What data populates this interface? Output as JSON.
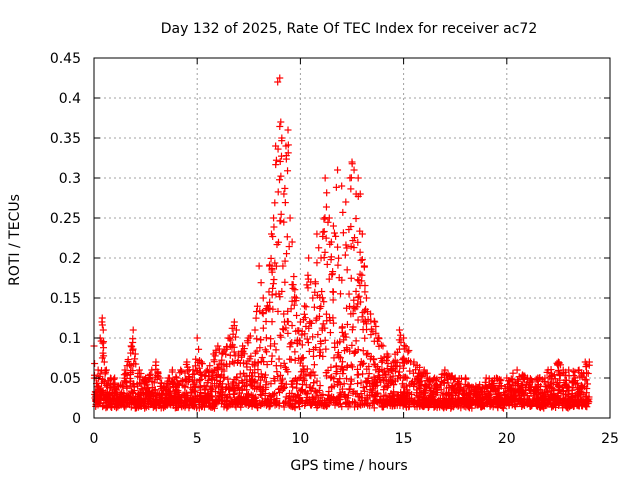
{
  "chart_data": {
    "type": "scatter",
    "title": "Day 132 of 2025, Rate Of TEC Index for receiver ac72",
    "xlabel": "GPS time / hours",
    "ylabel": "ROTI / TECUs",
    "xlim": [
      0,
      25
    ],
    "ylim": [
      0,
      0.45
    ],
    "x_ticks": [
      "0",
      "5",
      "10",
      "15",
      "20",
      "25"
    ],
    "y_ticks": [
      "0",
      "0.05",
      "0.1",
      "0.15",
      "0.2",
      "0.25",
      "0.3",
      "0.35",
      "0.4",
      "0.45"
    ],
    "grid": true,
    "marker": "+",
    "color": "#ff0000",
    "series": [
      {
        "values_note": "",
        "x": [
          0.0,
          0.1,
          0.2,
          0.3,
          0.4,
          0.45,
          0.5,
          0.6,
          0.8,
          1.0,
          1.2,
          1.5,
          1.8,
          1.9,
          2.0,
          2.2,
          2.5,
          2.8,
          3.0,
          3.2,
          3.5,
          3.6,
          3.8,
          4.0,
          4.2,
          4.5,
          4.8,
          5.0,
          5.2,
          5.5,
          5.8,
          6.0,
          6.2,
          6.5,
          6.8,
          6.9,
          7.0,
          7.2,
          7.5,
          7.8,
          8.0,
          8.2,
          8.4,
          8.5,
          8.6,
          8.7,
          8.8,
          8.9,
          9.0,
          9.05,
          9.1,
          9.2,
          9.3,
          9.4,
          9.5,
          9.6,
          9.8,
          10.0,
          10.2,
          10.4,
          10.5,
          10.6,
          10.8,
          11.0,
          11.2,
          11.4,
          11.5,
          11.6,
          11.8,
          12.0,
          12.2,
          12.4,
          12.5,
          12.6,
          12.7,
          12.8,
          12.9,
          13.0,
          13.1,
          13.2,
          13.4,
          13.6,
          13.8,
          14.0,
          14.2,
          14.5,
          14.8,
          15.0,
          15.5,
          16.0,
          16.5,
          17.0,
          17.5,
          18.0,
          18.5,
          19.0,
          19.5,
          20.0,
          20.5,
          21.0,
          21.5,
          22.0,
          22.5,
          23.0,
          23.5,
          23.8,
          24.0
        ],
        "y": [
          0.09,
          0.05,
          0.06,
          0.1,
          0.125,
          0.11,
          0.07,
          0.06,
          0.05,
          0.05,
          0.04,
          0.06,
          0.09,
          0.11,
          0.08,
          0.06,
          0.05,
          0.06,
          0.07,
          0.05,
          0.04,
          0.05,
          0.06,
          0.05,
          0.06,
          0.07,
          0.06,
          0.1,
          0.07,
          0.06,
          0.08,
          0.09,
          0.08,
          0.1,
          0.12,
          0.11,
          0.08,
          0.09,
          0.1,
          0.11,
          0.19,
          0.15,
          0.14,
          0.19,
          0.23,
          0.25,
          0.34,
          0.42,
          0.425,
          0.37,
          0.35,
          0.28,
          0.34,
          0.36,
          0.25,
          0.22,
          0.15,
          0.12,
          0.14,
          0.2,
          0.17,
          0.15,
          0.23,
          0.2,
          0.3,
          0.25,
          0.22,
          0.24,
          0.31,
          0.29,
          0.27,
          0.3,
          0.32,
          0.31,
          0.28,
          0.3,
          0.28,
          0.23,
          0.19,
          0.15,
          0.13,
          0.12,
          0.1,
          0.09,
          0.08,
          0.07,
          0.11,
          0.1,
          0.07,
          0.06,
          0.05,
          0.06,
          0.05,
          0.05,
          0.04,
          0.05,
          0.05,
          0.05,
          0.06,
          0.05,
          0.05,
          0.06,
          0.07,
          0.06,
          0.06,
          0.07,
          0.07
        ]
      }
    ]
  }
}
